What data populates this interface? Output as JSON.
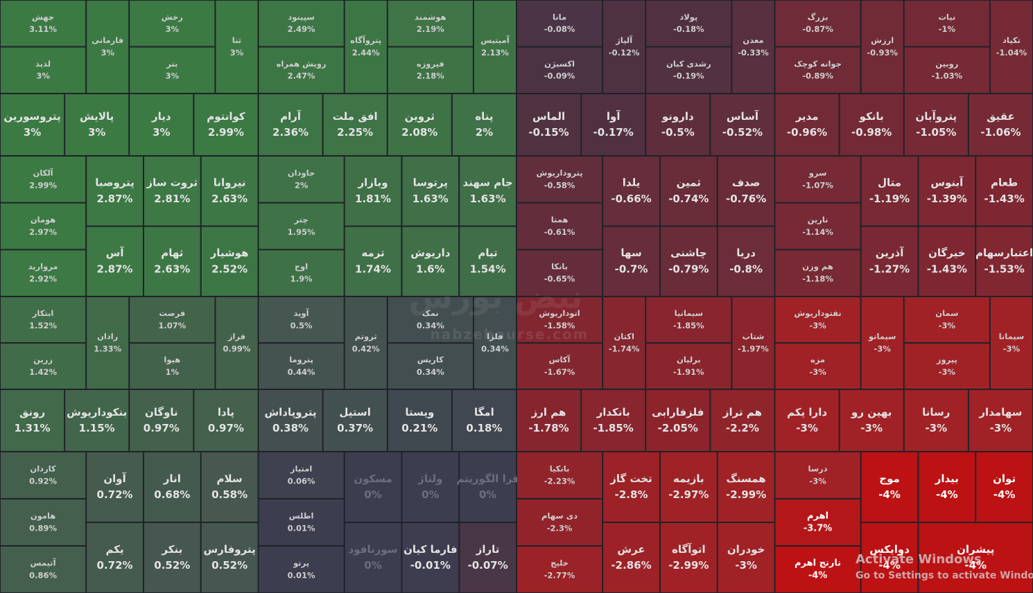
{
  "chart_data": {
    "type": "treemap",
    "categories": [
      "جهش",
      "لذیذ",
      "فارمانی",
      "رخش",
      "بتر",
      "ثنا",
      "سپینود",
      "رویش همراه",
      "پتروآگاه",
      "هوشمند",
      "فیروزه",
      "آمیتیس",
      "مانا",
      "اکسیژن",
      "آلیاژ",
      "پولاد",
      "رشدی کیان",
      "معدن",
      "بزرگ",
      "جوانه کوچک",
      "ارزش",
      "نیات",
      "روبین",
      "تکیاد",
      "پتروسورین",
      "پالایش",
      "دیار",
      "کوانتوم",
      "آرام",
      "افق ملت",
      "ثروین",
      "پناه",
      "الماس",
      "آوا",
      "دارونو",
      "آساس",
      "مدیر",
      "بانکو",
      "پتروآبان",
      "عقیق",
      "آلکان",
      "هومان",
      "مرواريد",
      "پتروصبا",
      "ثروت ساز",
      "نیروانا",
      "آس",
      "ثهام",
      "هوشیار",
      "جاودان",
      "چتر",
      "اوج",
      "وبازار",
      "پرتوسا",
      "جام سهند",
      "ترمه",
      "داریوش",
      "تیام",
      "پتروداریوش",
      "همتا",
      "بانکا",
      "یلدا",
      "ثمین",
      "صدف",
      "سها",
      "چاشنی",
      "دریا",
      "سرو",
      "نارین",
      "هم وزن",
      "متال",
      "آبنوس",
      "طعام",
      "آذرین",
      "خیرگان",
      "اعتبارسهام",
      "ابتکار",
      "زرین",
      "رادان",
      "فرصت",
      "هیوا",
      "فراز",
      "آوید",
      "پتروما",
      "ثروتم",
      "نمک",
      "کاریس",
      "فلزا",
      "اتوداریوش",
      "آکاس",
      "اکتان",
      "سیمانیا",
      "برلیان",
      "شتاب",
      "نفتوداریوش",
      "مزه",
      "سیمانو",
      "سمان",
      "پیروز",
      "سیمانا",
      "رونق",
      "بنکوداریوش",
      "ناوگان",
      "پادا",
      "پتروپاداش",
      "استیل",
      "ویستا",
      "امگا",
      "هم ارز",
      "بانکدار",
      "فلزفارابی",
      "هم تراز",
      "دارا یکم",
      "بهین رو",
      "رسانا",
      "سهامدار",
      "کاردان",
      "هامون",
      "آتیمس",
      "آوان",
      "انار",
      "سلام",
      "یکم",
      "بنکر",
      "پتروفارس",
      "امتیاز",
      "اطلس",
      "پرتو",
      "مسکون",
      "ولتاژ",
      "فرا الگوریتم",
      "سورنافود",
      "فارما کیان",
      "تاراز",
      "بانکیا",
      "دی سهام",
      "خلیج",
      "تخت گاز",
      "بازیمه",
      "همسنگ",
      "عرش",
      "اتوآگاه",
      "خودران",
      "درسا",
      "اهرم",
      "نارنج اهرم",
      "موج",
      "بیدار",
      "توان",
      "دوایکس",
      "پیشران"
    ],
    "values": [
      3.11,
      3,
      3,
      3,
      3,
      3,
      2.49,
      2.47,
      2.44,
      2.19,
      2.18,
      2.13,
      -0.08,
      -0.09,
      -0.12,
      -0.18,
      -0.19,
      -0.33,
      -0.87,
      -0.89,
      -0.93,
      -1,
      -1.03,
      -1.04,
      3,
      3,
      3,
      2.99,
      2.36,
      2.25,
      2.08,
      2,
      -0.15,
      -0.17,
      -0.5,
      -0.52,
      -0.96,
      -0.98,
      -1.05,
      -1.06,
      2.99,
      2.97,
      2.92,
      2.87,
      2.81,
      2.63,
      2.87,
      2.63,
      2.52,
      2,
      1.95,
      1.9,
      1.81,
      1.63,
      1.63,
      1.74,
      1.6,
      1.54,
      -0.58,
      -0.61,
      -0.65,
      -0.66,
      -0.74,
      -0.76,
      -0.7,
      -0.79,
      -0.8,
      -1.07,
      -1.14,
      -1.18,
      -1.19,
      -1.39,
      -1.43,
      -1.27,
      -1.43,
      -1.53,
      1.52,
      1.42,
      1.33,
      1.07,
      1,
      0.99,
      0.5,
      0.44,
      0.42,
      0.34,
      0.34,
      0.34,
      -1.58,
      -1.67,
      -1.74,
      -1.85,
      -1.91,
      -1.97,
      -3,
      -3,
      -3,
      -3,
      -3,
      -3,
      1.31,
      1.15,
      0.97,
      0.97,
      0.38,
      0.37,
      0.21,
      0.18,
      -1.78,
      -1.85,
      -2.05,
      -2.2,
      -3,
      -3,
      -3,
      -3,
      0.92,
      0.89,
      0.86,
      0.72,
      0.68,
      0.58,
      0.72,
      0.52,
      0.52,
      0.06,
      0.01,
      0.01,
      0,
      0,
      0,
      0,
      -0.01,
      -0.07,
      -2.23,
      -2.3,
      -2.77,
      -2.8,
      -2.97,
      -2.99,
      -2.86,
      -2.99,
      -3,
      -3,
      -3.7,
      -4,
      -4,
      -4,
      -4,
      -4,
      -4
    ],
    "value_labels": [
      "3.11%",
      "3%",
      "3%",
      "3%",
      "3%",
      "3%",
      "2.49%",
      "2.47%",
      "2.44%",
      "2.19%",
      "2.18%",
      "2.13%",
      "-0.08%",
      "-0.09%",
      "-0.12%",
      "-0.18%",
      "-0.19%",
      "-0.33%",
      "-0.87%",
      "-0.89%",
      "-0.93%",
      "-1%",
      "-1.03%",
      "-1.04%",
      "3%",
      "3%",
      "3%",
      "2.99%",
      "2.36%",
      "2.25%",
      "2.08%",
      "2%",
      "-0.15%",
      "-0.17%",
      "-0.5%",
      "-0.52%",
      "-0.96%",
      "-0.98%",
      "-1.05%",
      "-1.06%",
      "2.99%",
      "2.97%",
      "2.92%",
      "2.87%",
      "2.81%",
      "2.63%",
      "2.87%",
      "2.63%",
      "2.52%",
      "2%",
      "1.95%",
      "1.9%",
      "1.81%",
      "1.63%",
      "1.63%",
      "1.74%",
      "1.6%",
      "1.54%",
      "-0.58%",
      "-0.61%",
      "-0.65%",
      "-0.66%",
      "-0.74%",
      "-0.76%",
      "-0.7%",
      "-0.79%",
      "-0.8%",
      "-1.07%",
      "-1.14%",
      "-1.18%",
      "-1.19%",
      "-1.39%",
      "-1.43%",
      "-1.27%",
      "-1.43%",
      "-1.53%",
      "1.52%",
      "1.42%",
      "1.33%",
      "1.07%",
      "1%",
      "0.99%",
      "0.5%",
      "0.44%",
      "0.42%",
      "0.34%",
      "0.34%",
      "0.34%",
      "-1.58%",
      "-1.67%",
      "-1.74%",
      "-1.85%",
      "-1.91%",
      "-1.97%",
      "-3%",
      "-3%",
      "-3%",
      "-3%",
      "-3%",
      "-3%",
      "1.31%",
      "1.15%",
      "0.97%",
      "0.97%",
      "0.38%",
      "0.37%",
      "0.21%",
      "0.18%",
      "-1.78%",
      "-1.85%",
      "-2.05%",
      "-2.2%",
      "-3%",
      "-3%",
      "-3%",
      "-3%",
      "0.92%",
      "0.89%",
      "0.86%",
      "0.72%",
      "0.68%",
      "0.58%",
      "0.72%",
      "0.52%",
      "0.52%",
      "0.06%",
      "0.01%",
      "0.01%",
      "0%",
      "0%",
      "0%",
      "0%",
      "-0.01%",
      "-0.07%",
      "-2.23%",
      "-2.3%",
      "-2.77%",
      "-2.8%",
      "-2.97%",
      "-2.99%",
      "-2.86%",
      "-2.99%",
      "-3%",
      "-3%",
      "-3.7%",
      "-4%",
      "-4%",
      "-4%",
      "-4%",
      "-4%",
      "-4%"
    ]
  },
  "watermark": {
    "title": "نبض بورس",
    "url": "nabzebourse.com"
  },
  "os_notice": {
    "title": "Activate Windows",
    "subtitle": "Go to Settings to activate Windows."
  }
}
